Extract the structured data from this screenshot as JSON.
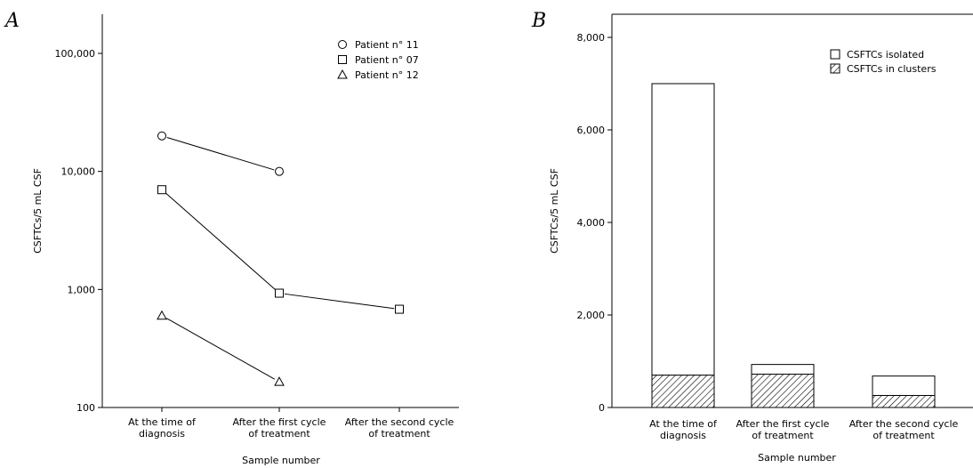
{
  "panels": {
    "a_label": "A",
    "b_label": "B"
  },
  "chart_data": [
    {
      "type": "line",
      "panel": "A",
      "y_scale": "log",
      "ylim": [
        100,
        100000
      ],
      "yticks": [
        100,
        1000,
        10000,
        100000
      ],
      "ytick_labels": [
        "100",
        "1,000",
        "10,000",
        "100,000"
      ],
      "categories": [
        [
          "At the time of",
          "diagnosis"
        ],
        [
          "After the first cycle",
          "of treatment"
        ],
        [
          "After the second cycle",
          "of treatment"
        ]
      ],
      "series": [
        {
          "name": "Patient n° 11",
          "marker": "circle",
          "values": [
            20000,
            10000,
            null
          ]
        },
        {
          "name": "Patient n° 07",
          "marker": "square",
          "values": [
            7000,
            930,
            680
          ]
        },
        {
          "name": "Patient n° 12",
          "marker": "triangle",
          "values": [
            600,
            165,
            null
          ]
        }
      ],
      "xlabel": "Sample number",
      "ylabel": "CSFTCs/5 mL CSF",
      "legend_position": "top-right",
      "grid": false
    },
    {
      "type": "bar",
      "stacked": true,
      "panel": "B",
      "ylim": [
        0,
        8500
      ],
      "yticks": [
        0,
        2000,
        4000,
        6000,
        8000
      ],
      "ytick_labels": [
        "0",
        "2,000",
        "4,000",
        "6,000",
        "8,000"
      ],
      "categories": [
        [
          "At the time of",
          "diagnosis"
        ],
        [
          "After the first cycle",
          "of treatment"
        ],
        [
          "After the second cycle",
          "of treatment"
        ]
      ],
      "series": [
        {
          "name": "CSFTCs in clusters",
          "pattern": "hatched",
          "values": [
            700,
            720,
            260
          ]
        },
        {
          "name": "CSFTCs isolated",
          "pattern": "empty",
          "values": [
            6300,
            210,
            420
          ]
        }
      ],
      "xlabel": "Sample number",
      "ylabel": "CSFTCs/5 mL CSF",
      "legend_position": "top-right",
      "grid": false
    }
  ]
}
